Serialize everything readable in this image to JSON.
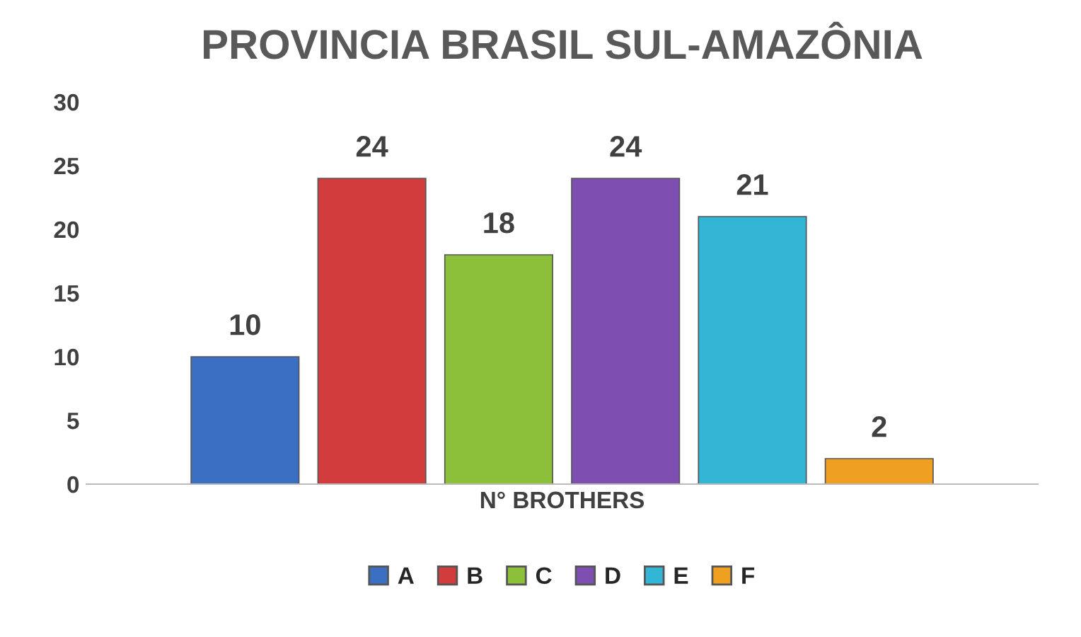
{
  "chart_data": {
    "type": "bar",
    "title": "PROVINCIA BRASIL SUL-AMAZÔNIA",
    "categories": [
      "N° BROTHERS"
    ],
    "series": [
      {
        "name": "A",
        "color": "#3a6fc4",
        "values": [
          10
        ]
      },
      {
        "name": "B",
        "color": "#d23c3c",
        "values": [
          24
        ]
      },
      {
        "name": "C",
        "color": "#8cbf3a",
        "values": [
          18
        ]
      },
      {
        "name": "D",
        "color": "#7e4fb0",
        "values": [
          24
        ]
      },
      {
        "name": "E",
        "color": "#33b5d6",
        "values": [
          21
        ]
      },
      {
        "name": "F",
        "color": "#f0a020",
        "values": [
          2
        ]
      }
    ],
    "ylim": [
      0,
      30
    ],
    "yticks": [
      0,
      5,
      10,
      15,
      20,
      25,
      30
    ],
    "data_labels": true,
    "legend": "bottom",
    "grid": false
  }
}
